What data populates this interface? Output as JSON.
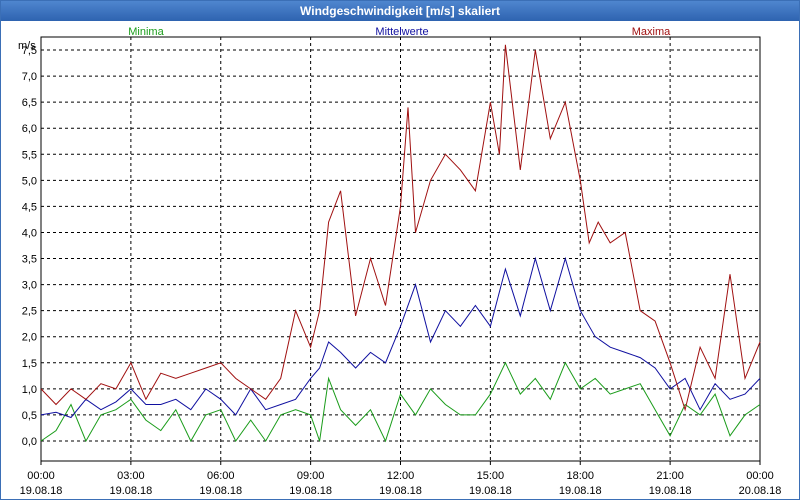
{
  "window": {
    "title": "Windgeschwindigkeit [m/s] skaliert"
  },
  "chart_data": {
    "type": "line",
    "title": "Windgeschwindigkeit [m/s] skaliert",
    "ylabel": "m/s",
    "ylim": [
      0,
      7.75
    ],
    "xlim": [
      0,
      24
    ],
    "grid": true,
    "y_ticks": [
      "0,0",
      "0,5",
      "1,0",
      "1,5",
      "2,0",
      "2,5",
      "3,0",
      "3,5",
      "4,0",
      "4,5",
      "5,0",
      "5,5",
      "6,0",
      "6,5",
      "7,0",
      "7,5"
    ],
    "x_ticks": [
      {
        "time": "00:00",
        "date": "19.08.18"
      },
      {
        "time": "03:00",
        "date": "19.08.18"
      },
      {
        "time": "06:00",
        "date": "19.08.18"
      },
      {
        "time": "09:00",
        "date": "19.08.18"
      },
      {
        "time": "12:00",
        "date": "19.08.18"
      },
      {
        "time": "15:00",
        "date": "19.08.18"
      },
      {
        "time": "18:00",
        "date": "19.08.18"
      },
      {
        "time": "21:00",
        "date": "19.08.18"
      },
      {
        "time": "00:00",
        "date": "20.08.18"
      }
    ],
    "series": [
      {
        "name": "Minima",
        "color": "#1a9c1a",
        "x": [
          0,
          0.5,
          1,
          1.5,
          2,
          2.5,
          3,
          3.5,
          4,
          4.5,
          5,
          5.5,
          6,
          6.5,
          7,
          7.5,
          8,
          8.5,
          9,
          9.3,
          9.6,
          10,
          10.5,
          11,
          11.5,
          12,
          12.5,
          13,
          13.5,
          14,
          14.5,
          15,
          15.5,
          16,
          16.5,
          17,
          17.5,
          18,
          18.5,
          19,
          19.5,
          20,
          20.5,
          21,
          21.5,
          22,
          22.5,
          23,
          23.5,
          24
        ],
        "values": [
          0,
          0.2,
          0.7,
          0,
          0.5,
          0.6,
          0.8,
          0.4,
          0.2,
          0.6,
          0,
          0.5,
          0.6,
          0,
          0.4,
          0,
          0.5,
          0.6,
          0.5,
          0,
          1.2,
          0.6,
          0.3,
          0.6,
          0,
          0.9,
          0.5,
          1.0,
          0.7,
          0.5,
          0.5,
          0.9,
          1.5,
          0.9,
          1.2,
          0.8,
          1.5,
          1.0,
          1.2,
          0.9,
          1.0,
          1.1,
          0.6,
          0.1,
          0.7,
          0.5,
          0.9,
          0.1,
          0.5,
          0.7
        ]
      },
      {
        "name": "Mittelwerte",
        "color": "#1010a0",
        "x": [
          0,
          0.5,
          1,
          1.5,
          2,
          2.5,
          3,
          3.5,
          4,
          4.5,
          5,
          5.5,
          6,
          6.5,
          7,
          7.5,
          8,
          8.5,
          9,
          9.3,
          9.6,
          10,
          10.5,
          11,
          11.5,
          12,
          12.5,
          13,
          13.5,
          14,
          14.5,
          15,
          15.5,
          16,
          16.5,
          17,
          17.5,
          18,
          18.5,
          19,
          19.5,
          20,
          20.5,
          21,
          21.5,
          22,
          22.5,
          23,
          23.5,
          24
        ],
        "values": [
          0.5,
          0.55,
          0.45,
          0.8,
          0.6,
          0.75,
          1.0,
          0.7,
          0.7,
          0.8,
          0.6,
          1.0,
          0.8,
          0.5,
          1.0,
          0.6,
          0.7,
          0.8,
          1.2,
          1.4,
          1.9,
          1.7,
          1.4,
          1.7,
          1.5,
          2.2,
          3.0,
          1.9,
          2.5,
          2.2,
          2.6,
          2.2,
          3.3,
          2.4,
          3.5,
          2.5,
          3.5,
          2.5,
          2.0,
          1.8,
          1.7,
          1.6,
          1.4,
          1.0,
          1.2,
          0.6,
          1.1,
          0.8,
          0.9,
          1.2
        ]
      },
      {
        "name": "Maxima",
        "color": "#a01010",
        "x": [
          0,
          0.5,
          1,
          1.5,
          2,
          2.5,
          3,
          3.5,
          4,
          4.5,
          5,
          5.5,
          6,
          6.5,
          7,
          7.5,
          8,
          8.5,
          9,
          9.3,
          9.6,
          10,
          10.5,
          11,
          11.5,
          12,
          12.25,
          12.5,
          13,
          13.5,
          14,
          14.5,
          15,
          15.3,
          15.5,
          16,
          16.5,
          17,
          17.5,
          18,
          18.3,
          18.6,
          19,
          19.5,
          20,
          20.5,
          21,
          21.5,
          22,
          22.5,
          23,
          23.5,
          24
        ],
        "values": [
          1.0,
          0.7,
          1.0,
          0.8,
          1.1,
          1.0,
          1.5,
          0.8,
          1.3,
          1.2,
          1.3,
          1.4,
          1.5,
          1.2,
          1.0,
          0.8,
          1.2,
          2.5,
          1.8,
          2.5,
          4.2,
          4.8,
          2.4,
          3.5,
          2.6,
          4.5,
          6.4,
          4.0,
          5.0,
          5.5,
          5.2,
          4.8,
          6.5,
          5.5,
          7.6,
          5.2,
          7.5,
          5.8,
          6.5,
          5.0,
          3.8,
          4.2,
          3.8,
          4.0,
          2.5,
          2.3,
          1.5,
          0.6,
          1.8,
          1.2,
          3.2,
          1.2,
          1.9
        ]
      }
    ]
  }
}
